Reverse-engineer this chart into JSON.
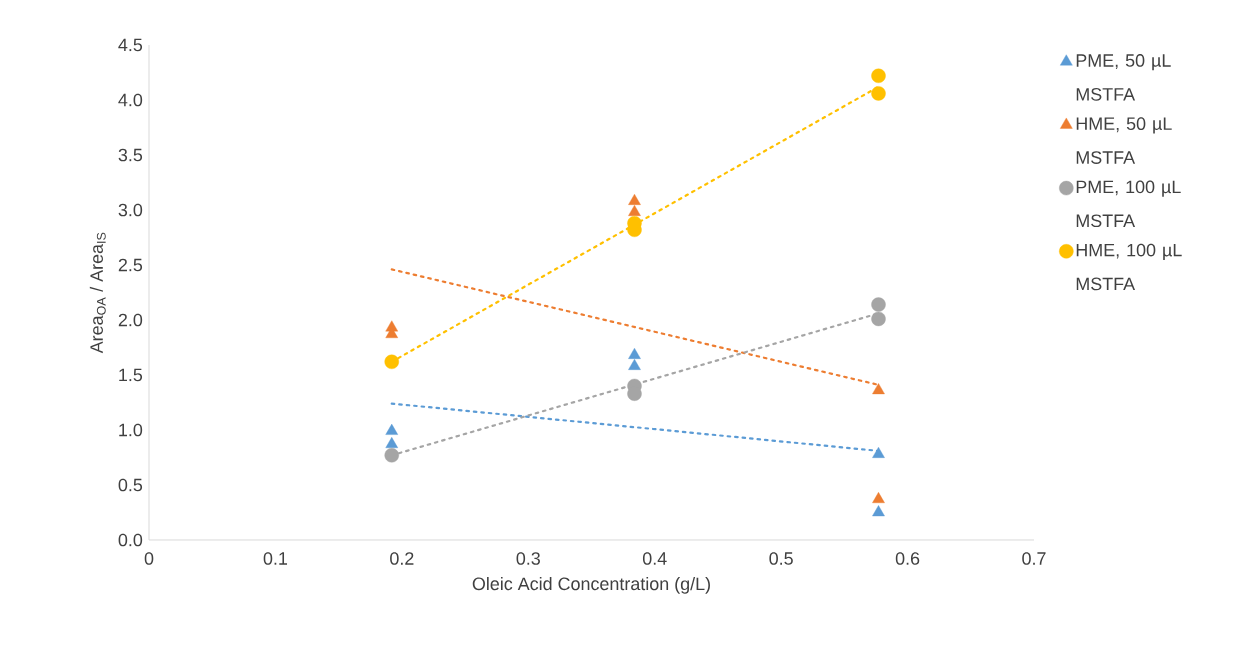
{
  "chart_data": {
    "type": "scatter",
    "xlabel": "Oleic Acid Concentration (g/L)",
    "ylabel": "Area$_{OA}$ / Area$_{IS}$",
    "xlim": [
      0,
      0.7
    ],
    "ylim": [
      0,
      4.5
    ],
    "xticks": [
      0,
      0.1,
      0.2,
      0.3,
      0.4,
      0.5,
      0.6,
      0.7
    ],
    "yticks": [
      {
        "value": 0,
        "label": "0.0"
      },
      {
        "value": 0.5,
        "label": "0.5"
      },
      {
        "value": 1,
        "label": "1.0"
      },
      {
        "value": 1.5,
        "label": "1.5"
      },
      {
        "value": 2,
        "label": "2.0"
      },
      {
        "value": 2.5,
        "label": "2.5"
      },
      {
        "value": 3,
        "label": "3.0"
      },
      {
        "value": 3.5,
        "label": "3.5"
      },
      {
        "value": 4,
        "label": "4.0"
      },
      {
        "value": 4.5,
        "label": "4.5"
      }
    ],
    "grid": false,
    "legend": "right",
    "series": [
      {
        "name": "PME, 50 µL MSTFA",
        "color": "#5b9bd5",
        "marker": "triangle",
        "x": [
          0.192,
          0.192,
          0.384,
          0.384,
          0.577,
          0.577
        ],
        "values": [
          0.99,
          0.87,
          1.68,
          1.58,
          0.78,
          0.25
        ]
      },
      {
        "name": "HME, 50 µL MSTFA",
        "color": "#ed7d31",
        "marker": "triangle",
        "x": [
          0.192,
          0.192,
          0.384,
          0.384,
          0.577,
          0.577
        ],
        "values": [
          1.93,
          1.87,
          3.08,
          2.98,
          1.36,
          0.37
        ]
      },
      {
        "name": "PME, 100 µL MSTFA",
        "color": "#a5a5a5",
        "marker": "circle",
        "x": [
          0.192,
          0.384,
          0.384,
          0.577,
          0.577
        ],
        "values": [
          0.77,
          1.4,
          1.33,
          2.14,
          2.01
        ]
      },
      {
        "name": "HME, 100 µL MSTFA",
        "color": "#ffc000",
        "marker": "circle",
        "x": [
          0.192,
          0.384,
          0.384,
          0.577,
          0.577
        ],
        "values": [
          1.62,
          2.88,
          2.82,
          4.22,
          4.06
        ]
      },
      {
        "type": "line",
        "color": "#5b9bd5",
        "line_style": "dotted",
        "x": [
          0.192,
          0.577
        ],
        "values": [
          1.24,
          0.81
        ]
      },
      {
        "type": "line",
        "color": "#ed7d31",
        "line_style": "dotted",
        "x": [
          0.192,
          0.577
        ],
        "values": [
          2.46,
          1.41
        ]
      },
      {
        "type": "line",
        "color": "#a5a5a5",
        "line_style": "dotted",
        "x": [
          0.192,
          0.577
        ],
        "values": [
          0.77,
          2.06
        ]
      },
      {
        "type": "line",
        "color": "#ffc000",
        "line_style": "dotted",
        "x": [
          0.192,
          0.577
        ],
        "values": [
          1.62,
          4.12
        ]
      }
    ]
  }
}
